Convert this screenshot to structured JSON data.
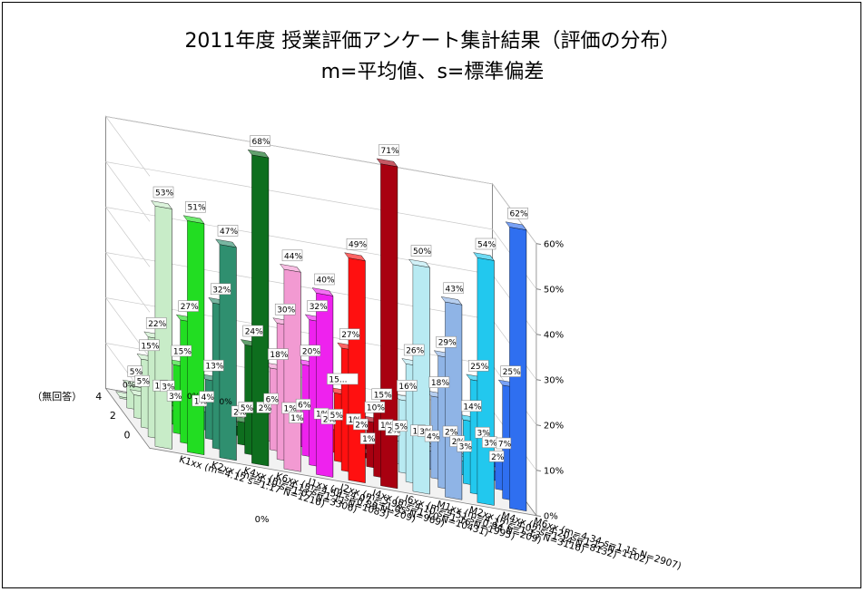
{
  "chart_data": {
    "type": "bar",
    "title": "2011年度 授業評価アンケート集計結果（評価の分布）",
    "subtitle": "m=平均値、s=標準偏差",
    "zlabel_ticks": [
      "0%",
      "10%",
      "20%",
      "30%",
      "40%",
      "50%",
      "60%"
    ],
    "zlim": [
      0,
      60
    ],
    "score_ticks": [
      "4",
      "2",
      "0"
    ],
    "no_answer_label": "（無回答）",
    "zero_marker": "0%",
    "colors": [
      "#c8ecc8",
      "#22dd22",
      "#2f8f6f",
      "#0e6e1e",
      "#f29ad2",
      "#ee22ee",
      "#ff1010",
      "#a80010",
      "#b8eaf2",
      "#8fb4e6",
      "#22c8ee",
      "#2f6ff0"
    ],
    "series": [
      {
        "name": "K1xx (m=4.12 s=1.17 N=1216)",
        "values": [
          53,
          22,
          15,
          5,
          5,
          0
        ],
        "labels": [
          "53%",
          "22%",
          "15%",
          "5%",
          "5%",
          "0%"
        ]
      },
      {
        "name": "K2xx (m=4.19 s=1.07 N=3306)",
        "values": [
          51,
          27,
          15,
          3,
          3,
          1
        ],
        "labels": [
          "51%",
          "27%",
          "15%",
          "3%",
          "3%",
          "1%"
        ]
      },
      {
        "name": "K4xx (m=4.13 s=1.11 N=1083)",
        "values": [
          47,
          32,
          13,
          4,
          1,
          0
        ],
        "labels": [
          "47%",
          "32%",
          "13%",
          "4%",
          "1%",
          "0%"
        ]
      },
      {
        "name": "K6xx (m=4.54 s=0.89 N=209)",
        "values": [
          68,
          24,
          5,
          2,
          0,
          0
        ],
        "labels": [
          "68%",
          "24%",
          "5%",
          "2%",
          "",
          "0%"
        ]
      },
      {
        "name": "I1xx (m=4.07 s=1.05 N=969)",
        "values": [
          44,
          30,
          18,
          6,
          2,
          1
        ],
        "labels": [
          "44%",
          "30%",
          "18%",
          "6%",
          "2%",
          ""
        ]
      },
      {
        "name": "I2xx (m=3.98 s=1.10 N=10431)",
        "values": [
          40,
          32,
          20,
          6,
          1,
          1
        ],
        "labels": [
          "40%",
          "32%",
          "20%",
          "6%",
          "1%",
          "1%"
        ]
      },
      {
        "name": "I4xx (m=4.10 s=1.16 N=1995)",
        "values": [
          49,
          27,
          15,
          5,
          2,
          1
        ],
        "labels": [
          "49%",
          "27%",
          "15...",
          "5%",
          "2%",
          "1%"
        ]
      },
      {
        "name": "I6xx (m=4.51 s=0.94 N=209)",
        "values": [
          71,
          15,
          10,
          1,
          2,
          1
        ],
        "labels": [
          "71%",
          "15%",
          "10%",
          "1%",
          "2%",
          "1%"
        ]
      },
      {
        "name": "M1xx (m=4.12 s=1.13 N=3116)",
        "values": [
          50,
          26,
          16,
          5,
          2,
          1
        ],
        "labels": [
          "50%",
          "26%",
          "16%",
          "5%",
          "2%",
          "1%"
        ]
      },
      {
        "name": "M2xx (m=4.02 s=1.14 N=8132)",
        "values": [
          43,
          29,
          18,
          4,
          3,
          1
        ],
        "labels": [
          "43%",
          "29%",
          "18%",
          "4%",
          "3%",
          "1%"
        ]
      },
      {
        "name": "M4xx (m=4.20 s=1.12 N=1102)",
        "values": [
          54,
          25,
          14,
          3,
          2,
          2
        ],
        "labels": [
          "54%",
          "25%",
          "14%",
          "3%",
          "2%",
          "2%"
        ]
      },
      {
        "name": "M6xx (m=4.34 s=1.15 N=2907)",
        "values": [
          62,
          25,
          7,
          2,
          3,
          3
        ],
        "labels": [
          "62%",
          "25%",
          "7%",
          "2%",
          "3%",
          "3%"
        ]
      }
    ]
  }
}
